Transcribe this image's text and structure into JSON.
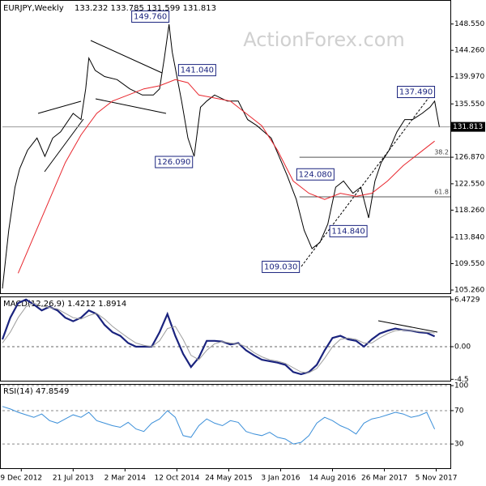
{
  "chart_data": [
    {
      "type": "line",
      "title": "EURJPY,Weekly",
      "subtitle": "133.232 133.785 131.599 131.813",
      "watermark": "ActionForex.com",
      "xlim": [
        0,
        285
      ],
      "ylim": [
        104.74,
        152.06
      ],
      "yticks": [
        {
          "value": 148.55,
          "label": "148.550"
        },
        {
          "value": 144.26,
          "label": "144.260"
        },
        {
          "value": 139.97,
          "label": "139.970"
        },
        {
          "value": 135.55,
          "label": "135.550"
        },
        {
          "value": 126.87,
          "label": "126.870"
        },
        {
          "value": 122.55,
          "label": "122.550"
        },
        {
          "value": 118.26,
          "label": "118.260"
        },
        {
          "value": 113.84,
          "label": "113.840"
        },
        {
          "value": 109.55,
          "label": "109.550"
        },
        {
          "value": 105.26,
          "label": "105.260"
        }
      ],
      "last": {
        "value": 131.813,
        "label": "131.813"
      },
      "series": [
        {
          "color": "#000000",
          "x": [
            0,
            4,
            8,
            11,
            16,
            22,
            27,
            32,
            37,
            45,
            50,
            53,
            55,
            59,
            65,
            73,
            81,
            89,
            96,
            100,
            103,
            106,
            108,
            111,
            114,
            118,
            122,
            126,
            130,
            135,
            143,
            150,
            156,
            162,
            171,
            176,
            181,
            187,
            192,
            197,
            202,
            207,
            212,
            217,
            223,
            228,
            233,
            237,
            241,
            246,
            251,
            256,
            261,
            267,
            272,
            275,
            278
          ],
          "values": [
            105.5,
            115,
            122,
            125,
            128,
            130,
            127,
            130,
            131,
            134,
            133,
            138,
            143,
            141,
            140,
            139.5,
            138,
            137,
            137,
            138,
            143,
            148.5,
            144,
            140,
            136,
            130,
            127,
            135,
            136,
            137,
            136,
            136,
            133,
            132,
            130,
            127,
            124,
            120,
            115,
            112,
            113,
            116,
            122,
            123,
            121,
            122,
            117,
            123,
            126,
            128,
            131,
            133,
            133,
            134,
            135,
            136,
            131.8
          ]
        },
        {
          "color": "#e8262d",
          "x": [
            10,
            20,
            30,
            40,
            50,
            60,
            70,
            80,
            90,
            100,
            110,
            118,
            125,
            135,
            145,
            155,
            165,
            175,
            185,
            195,
            205,
            215,
            225,
            235,
            245,
            255,
            265,
            275
          ],
          "values": [
            108,
            114,
            120,
            126,
            130.5,
            134,
            136,
            137,
            138,
            138.5,
            139.5,
            139,
            137,
            136.5,
            136,
            134,
            132,
            128,
            123,
            121,
            120,
            121,
            120.5,
            121,
            123,
            125.5,
            127.5,
            129.5
          ]
        }
      ],
      "annotations": [
        {
          "x": 107,
          "value": 149.76,
          "label": "149.760"
        },
        {
          "x": 111,
          "value": 141.04,
          "label": "141.040"
        },
        {
          "x": 122,
          "value": 126.09,
          "label": "126.090"
        },
        {
          "x": 212,
          "value": 124.08,
          "label": "124.080"
        },
        {
          "x": 233,
          "value": 114.84,
          "label": "114.840"
        },
        {
          "x": 190,
          "value": 109.03,
          "label": "109.030"
        },
        {
          "x": 276,
          "value": 137.49,
          "label": "137.490"
        }
      ],
      "levels": [
        {
          "x": 189,
          "value": 126.87,
          "label": "38.2"
        },
        {
          "x": 189,
          "value": 120.43,
          "label": "61.8"
        }
      ]
    },
    {
      "type": "line",
      "title": "MACD(12,26,9) 1.4212 1.8914",
      "xlim": [
        0,
        285
      ],
      "ylim": [
        -4.69,
        6.92
      ],
      "yticks": [
        6.4729,
        {
          "value": 0,
          "label": "0.00"
        },
        -4.5
      ],
      "x": [
        0,
        5,
        10,
        15,
        20,
        25,
        30,
        35,
        40,
        45,
        50,
        55,
        60,
        65,
        70,
        75,
        80,
        85,
        90,
        95,
        100,
        105,
        110,
        115,
        120,
        125,
        130,
        135,
        140,
        145,
        150,
        155,
        160,
        165,
        170,
        175,
        180,
        185,
        190,
        195,
        200,
        205,
        210,
        215,
        220,
        225,
        230,
        235,
        240,
        245,
        250,
        255,
        260,
        265,
        270,
        275
      ],
      "series": [
        {
          "color": "#1a237e",
          "values": [
            1,
            4,
            6,
            6.5,
            5.8,
            5,
            5.5,
            5,
            4,
            3.5,
            4,
            5,
            4.5,
            3,
            2,
            1.5,
            0.5,
            0,
            0,
            0,
            2,
            4.5,
            1.5,
            -1,
            -2.8,
            -1.5,
            0.8,
            0.8,
            0.7,
            0.3,
            0.5,
            -0.5,
            -1.2,
            -1.8,
            -2,
            -2.2,
            -2.5,
            -3.5,
            -3.8,
            -3.5,
            -2.5,
            -0.5,
            1.2,
            1.5,
            1,
            0.8,
            0,
            1,
            1.8,
            2.2,
            2.5,
            2.3,
            2.2,
            2,
            1.9,
            1.42
          ]
        },
        {
          "color": "#9e9e9e",
          "values": [
            0.5,
            2,
            4,
            5.5,
            6,
            5.6,
            5.4,
            5.2,
            4.6,
            4,
            3.8,
            4.3,
            4.6,
            3.8,
            2.8,
            2,
            1.2,
            0.5,
            0.2,
            0,
            0.8,
            2.5,
            2.8,
            1,
            -1.2,
            -1.8,
            -0.5,
            0.4,
            0.7,
            0.5,
            0.4,
            0,
            -0.8,
            -1.4,
            -1.8,
            -2,
            -2.3,
            -2.9,
            -3.5,
            -3.6,
            -3,
            -1.6,
            0,
            1,
            1.2,
            1,
            0.5,
            0.5,
            1.2,
            1.8,
            2.2,
            2.3,
            2.2,
            2.1,
            2,
            1.89
          ]
        }
      ]
    },
    {
      "type": "line",
      "title": "RSI(14) 47.8549",
      "grid": true,
      "xlim": [
        0,
        285
      ],
      "ylim": [
        1,
        102
      ],
      "yticks": [
        100,
        70,
        30
      ],
      "xticks": [
        {
          "value": 12,
          "label": "9 Dec 2012"
        },
        {
          "value": 45,
          "label": "21 Jul 2013"
        },
        {
          "value": 78,
          "label": "2 Mar 2014"
        },
        {
          "value": 111,
          "label": "12 Oct 2014"
        },
        {
          "value": 144,
          "label": "24 May 2015"
        },
        {
          "value": 177,
          "label": "3 Jan 2016"
        },
        {
          "value": 210,
          "label": "14 Aug 2016"
        },
        {
          "value": 243,
          "label": "26 Mar 2017"
        },
        {
          "value": 276,
          "label": "5 Nov 2017"
        }
      ],
      "x": [
        0,
        5,
        10,
        15,
        20,
        25,
        30,
        35,
        40,
        45,
        50,
        55,
        60,
        65,
        70,
        75,
        80,
        85,
        90,
        95,
        100,
        105,
        110,
        115,
        120,
        125,
        130,
        135,
        140,
        145,
        150,
        155,
        160,
        165,
        170,
        175,
        180,
        185,
        190,
        195,
        200,
        205,
        210,
        215,
        220,
        225,
        230,
        235,
        240,
        245,
        250,
        255,
        260,
        265,
        270,
        275
      ],
      "series": [
        {
          "color": "#3b8fd9",
          "values": [
            75,
            72,
            68,
            65,
            62,
            66,
            58,
            55,
            60,
            65,
            62,
            68,
            58,
            55,
            52,
            50,
            56,
            48,
            45,
            55,
            60,
            70,
            62,
            40,
            38,
            52,
            60,
            55,
            52,
            58,
            56,
            45,
            42,
            40,
            44,
            38,
            36,
            30,
            32,
            40,
            55,
            62,
            58,
            52,
            48,
            42,
            55,
            60,
            62,
            65,
            68,
            66,
            62,
            64,
            68,
            47.85
          ]
        }
      ]
    }
  ]
}
